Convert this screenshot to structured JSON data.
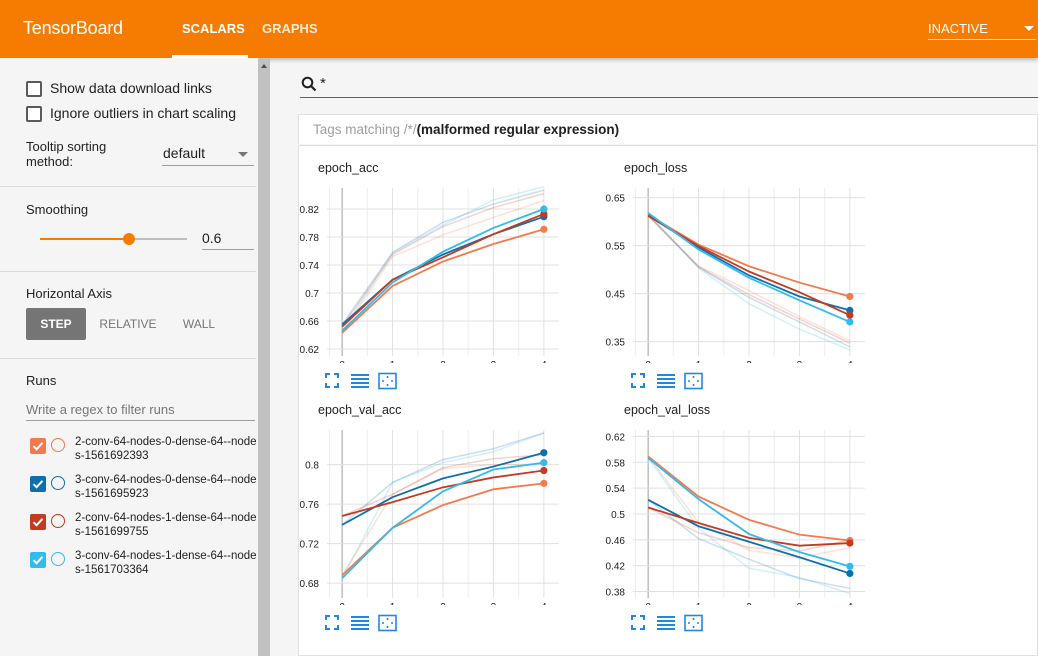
{
  "header": {
    "brand": "TensorBoard",
    "tabs": [
      {
        "label": "SCALARS",
        "active": true
      },
      {
        "label": "GRAPHS",
        "active": false
      }
    ],
    "status_select": "INACTIVE",
    "accent_color": "#f57c00"
  },
  "sidebar": {
    "show_download_links": {
      "label": "Show data download links",
      "checked": false
    },
    "ignore_outliers": {
      "label": "Ignore outliers in chart scaling",
      "checked": false
    },
    "tooltip_sorting": {
      "label": "Tooltip sorting method:",
      "value": "default"
    },
    "smoothing": {
      "label": "Smoothing",
      "value": "0.6",
      "fraction": 0.6
    },
    "horizontal_axis": {
      "label": "Horizontal Axis",
      "options": [
        "STEP",
        "RELATIVE",
        "WALL"
      ],
      "selected": "STEP"
    },
    "runs": {
      "label": "Runs",
      "filter_placeholder": "Write a regex to filter runs",
      "items": [
        {
          "name": "2-conv-64-nodes-0-dense-64--nodes-1561692393",
          "color": "#f4794d",
          "checked": true
        },
        {
          "name": "3-conv-64-nodes-0-dense-64--nodes-1561695923",
          "color": "#0e6fae",
          "checked": true
        },
        {
          "name": "2-conv-64-nodes-1-dense-64--nodes-1561699755",
          "color": "#c23b22",
          "checked": true
        },
        {
          "name": "3-conv-64-nodes-1-dense-64--nodes-1561703364",
          "color": "#33bbee",
          "checked": true
        }
      ]
    }
  },
  "main": {
    "search_value": "*",
    "tags_matching_prefix": "Tags matching /*/",
    "tags_matching_error": "(malformed regular expression)"
  },
  "chart_data": [
    {
      "type": "line",
      "title": "epoch_acc",
      "x": [
        0,
        1,
        2,
        3,
        4
      ],
      "x_ticks": [
        "0",
        "1",
        "2",
        "3",
        "4"
      ],
      "y_ticks": [
        "0.62",
        "0.66",
        "0.7",
        "0.74",
        "0.78",
        "0.82"
      ],
      "ylim": [
        0.61,
        0.85
      ],
      "series": [
        {
          "color": "#f4794d",
          "values": [
            0.643,
            0.71,
            0.745,
            0.77,
            0.791
          ],
          "raw": [
            0.643,
            0.752,
            0.783,
            0.808,
            0.832
          ]
        },
        {
          "color": "#0e6fae",
          "values": [
            0.655,
            0.719,
            0.755,
            0.784,
            0.809
          ],
          "raw": [
            0.655,
            0.758,
            0.801,
            0.827,
            0.847
          ]
        },
        {
          "color": "#c23b22",
          "values": [
            0.652,
            0.719,
            0.751,
            0.784,
            0.813
          ],
          "raw": [
            0.652,
            0.755,
            0.795,
            0.822,
            0.842
          ]
        },
        {
          "color": "#33bbee",
          "values": [
            0.646,
            0.715,
            0.759,
            0.793,
            0.82
          ],
          "raw": [
            0.646,
            0.757,
            0.797,
            0.833,
            0.852
          ]
        }
      ]
    },
    {
      "type": "line",
      "title": "epoch_loss",
      "x": [
        0,
        1,
        2,
        3,
        4
      ],
      "x_ticks": [
        "0",
        "1",
        "2",
        "3",
        "4"
      ],
      "y_ticks": [
        "0.35",
        "0.45",
        "0.55",
        "0.65"
      ],
      "ylim": [
        0.32,
        0.67
      ],
      "series": [
        {
          "color": "#f4794d",
          "values": [
            0.614,
            0.552,
            0.507,
            0.473,
            0.444
          ],
          "raw": [
            0.614,
            0.508,
            0.456,
            0.402,
            0.352
          ]
        },
        {
          "color": "#0e6fae",
          "values": [
            0.613,
            0.546,
            0.488,
            0.444,
            0.415
          ],
          "raw": [
            0.613,
            0.505,
            0.442,
            0.391,
            0.339
          ]
        },
        {
          "color": "#c23b22",
          "values": [
            0.612,
            0.549,
            0.496,
            0.453,
            0.405
          ],
          "raw": [
            0.612,
            0.506,
            0.448,
            0.397,
            0.347
          ]
        },
        {
          "color": "#33bbee",
          "values": [
            0.618,
            0.542,
            0.483,
            0.436,
            0.391
          ],
          "raw": [
            0.618,
            0.503,
            0.429,
            0.376,
            0.333
          ]
        }
      ]
    },
    {
      "type": "line",
      "title": "epoch_val_acc",
      "x": [
        0,
        1,
        2,
        3,
        4
      ],
      "x_ticks": [
        "0",
        "1",
        "2",
        "3",
        "4"
      ],
      "y_ticks": [
        "0.68",
        "0.72",
        "0.76",
        "0.8"
      ],
      "ylim": [
        0.665,
        0.835
      ],
      "series": [
        {
          "color": "#f4794d",
          "values": [
            0.688,
            0.736,
            0.759,
            0.775,
            0.781
          ],
          "raw": [
            0.688,
            0.77,
            0.796,
            0.8,
            0.8
          ]
        },
        {
          "color": "#0e6fae",
          "values": [
            0.739,
            0.767,
            0.786,
            0.798,
            0.812
          ],
          "raw": [
            0.739,
            0.782,
            0.805,
            0.816,
            0.832
          ]
        },
        {
          "color": "#c23b22",
          "values": [
            0.748,
            0.762,
            0.777,
            0.787,
            0.794
          ],
          "raw": [
            0.748,
            0.77,
            0.797,
            0.806,
            0.81
          ]
        },
        {
          "color": "#33bbee",
          "values": [
            0.685,
            0.736,
            0.773,
            0.795,
            0.802
          ],
          "raw": [
            0.685,
            0.782,
            0.802,
            0.813,
            0.832
          ]
        }
      ]
    },
    {
      "type": "line",
      "title": "epoch_val_loss",
      "x": [
        0,
        1,
        2,
        3,
        4
      ],
      "x_ticks": [
        "0",
        "1",
        "2",
        "3",
        "4"
      ],
      "y_ticks": [
        "0.38",
        "0.42",
        "0.46",
        "0.5",
        "0.54",
        "0.58",
        "0.62"
      ],
      "ylim": [
        0.37,
        0.63
      ],
      "series": [
        {
          "color": "#f4794d",
          "values": [
            0.589,
            0.527,
            0.491,
            0.468,
            0.459
          ],
          "raw": [
            0.589,
            0.487,
            0.444,
            0.432,
            0.448
          ]
        },
        {
          "color": "#0e6fae",
          "values": [
            0.522,
            0.481,
            0.457,
            0.433,
            0.408
          ],
          "raw": [
            0.522,
            0.462,
            0.43,
            0.4,
            0.385
          ]
        },
        {
          "color": "#c23b22",
          "values": [
            0.51,
            0.486,
            0.463,
            0.451,
            0.455
          ],
          "raw": [
            0.51,
            0.471,
            0.448,
            0.443,
            0.46
          ]
        },
        {
          "color": "#33bbee",
          "values": [
            0.587,
            0.523,
            0.469,
            0.441,
            0.419
          ],
          "raw": [
            0.587,
            0.478,
            0.416,
            0.402,
            0.377
          ]
        }
      ]
    }
  ]
}
